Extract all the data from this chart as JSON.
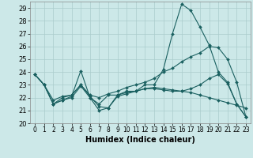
{
  "xlabel": "Humidex (Indice chaleur)",
  "xlim": [
    -0.5,
    23.5
  ],
  "ylim": [
    20,
    29.5
  ],
  "yticks": [
    20,
    21,
    22,
    23,
    24,
    25,
    26,
    27,
    28,
    29
  ],
  "xticks": [
    0,
    1,
    2,
    3,
    4,
    5,
    6,
    7,
    8,
    9,
    10,
    11,
    12,
    13,
    14,
    15,
    16,
    17,
    18,
    19,
    20,
    21,
    22,
    23
  ],
  "bg_color": "#cce8e8",
  "grid_color": "#aacccc",
  "line_color": "#1a6060",
  "lines": [
    [
      23.8,
      23.0,
      21.5,
      21.8,
      22.1,
      24.1,
      22.0,
      21.0,
      21.2,
      22.2,
      22.5,
      22.5,
      23.0,
      23.0,
      24.2,
      27.0,
      29.3,
      28.8,
      27.5,
      26.1,
      24.0,
      23.2,
      21.5,
      20.5
    ],
    [
      23.8,
      23.0,
      21.8,
      22.1,
      22.2,
      23.0,
      22.2,
      22.0,
      22.3,
      22.5,
      22.8,
      23.0,
      23.2,
      23.5,
      24.0,
      24.3,
      24.8,
      25.2,
      25.5,
      26.0,
      25.9,
      25.0,
      23.2,
      20.5
    ],
    [
      23.8,
      23.0,
      21.5,
      21.8,
      22.0,
      22.9,
      22.0,
      21.5,
      22.2,
      22.2,
      22.4,
      22.5,
      22.7,
      22.8,
      22.7,
      22.6,
      22.5,
      22.4,
      22.2,
      22.0,
      21.8,
      21.6,
      21.4,
      21.2
    ],
    [
      23.8,
      23.0,
      21.5,
      22.0,
      22.2,
      23.0,
      22.1,
      21.3,
      21.2,
      22.1,
      22.3,
      22.5,
      22.7,
      22.7,
      22.6,
      22.5,
      22.5,
      22.7,
      23.0,
      23.5,
      23.8,
      23.1,
      21.5,
      20.5
    ]
  ]
}
